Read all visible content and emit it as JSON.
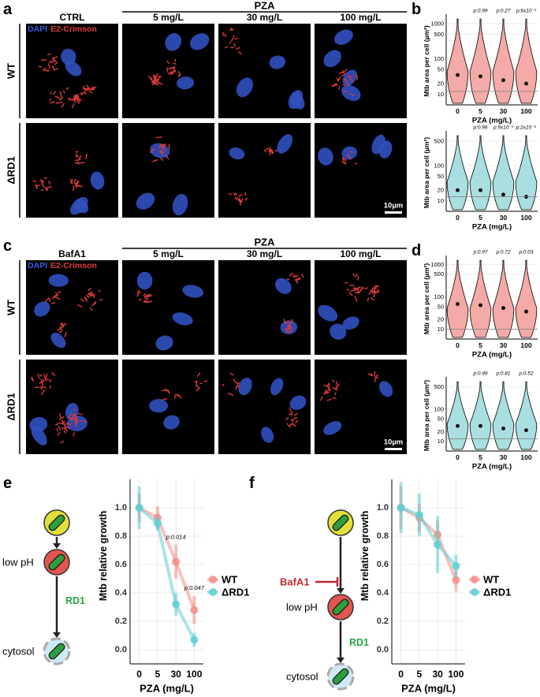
{
  "panel_labels": [
    "a",
    "b",
    "c",
    "d",
    "e",
    "f"
  ],
  "image_panels": [
    {
      "group_header": "PZA",
      "columns": [
        "CTRL",
        "5 mg/L",
        "30 mg/L",
        "100 mg/L"
      ],
      "rows": [
        "WT",
        "ΔRD1"
      ],
      "stain_labels": [
        "DAPI",
        "E2-Crimson"
      ],
      "scale_bar": "10µm"
    },
    {
      "group_header": "PZA",
      "columns": [
        "BafA1",
        "5 mg/L",
        "30 mg/L",
        "100 mg/L"
      ],
      "rows": [
        "WT",
        "ΔRD1"
      ],
      "stain_labels": [
        "DAPI",
        "E2-Crimson"
      ],
      "scale_bar": "10µm"
    }
  ],
  "diagrams": [
    {
      "steps": [
        "low pH",
        "cytosol"
      ],
      "factor": "RD1"
    },
    {
      "inhibitor": "BafA1",
      "steps": [
        "low pH",
        "cytosol"
      ],
      "factor": "RD1"
    }
  ],
  "chart_data": [
    {
      "type": "violin",
      "ylabel": "Mtb area per cell (µm²)",
      "xlabel": "PZA (mg/L)",
      "categories": [
        "0",
        "5",
        "30",
        "100"
      ],
      "values": [
        35,
        32,
        25,
        20
      ],
      "reference_line": 12,
      "color": "#f4aaa6",
      "annotations": [
        null,
        "p:0.99",
        "p:0.27",
        "p:6x10⁻³"
      ],
      "ylim": [
        5,
        1500
      ],
      "yticks": [
        10,
        20,
        50,
        100,
        500,
        1000
      ],
      "log_scale": true,
      "grid": true
    },
    {
      "type": "violin",
      "ylabel": "Mtb area per cell (µm²)",
      "xlabel": "PZA (mg/L)",
      "categories": [
        "0",
        "5",
        "30",
        "100"
      ],
      "values": [
        20,
        20,
        15,
        13
      ],
      "reference_line": 13,
      "color": "#a9dfe0",
      "annotations": [
        null,
        "p:0.96",
        "p:9x10⁻³",
        "p:2x10⁻⁴"
      ],
      "ylim": [
        5,
        800
      ],
      "yticks": [
        10,
        20,
        50,
        100,
        500
      ],
      "log_scale": true,
      "grid": true
    },
    {
      "type": "violin",
      "ylabel": "Mtb area per cell (µm²)",
      "xlabel": "PZA (mg/L)",
      "categories": [
        "0",
        "5",
        "30",
        "100"
      ],
      "values": [
        60,
        55,
        45,
        35
      ],
      "reference_line": 10,
      "color": "#f4aaa6",
      "annotations": [
        null,
        "p:0.97",
        "p:0.72",
        "p:0.03"
      ],
      "ylim": [
        5,
        1500
      ],
      "yticks": [
        10,
        20,
        50,
        100,
        500,
        1000
      ],
      "log_scale": true,
      "grid": true
    },
    {
      "type": "violin",
      "ylabel": "Mtb area per cell (µm²)",
      "xlabel": "PZA (mg/L)",
      "categories": [
        "0",
        "5",
        "30",
        "100"
      ],
      "values": [
        30,
        30,
        25,
        22
      ],
      "reference_line": 12,
      "color": "#a9dfe0",
      "annotations": [
        null,
        "p:0.99",
        "p:0.81",
        "p:0.52"
      ],
      "ylim": [
        5,
        800
      ],
      "yticks": [
        10,
        20,
        50,
        100,
        500
      ],
      "log_scale": true,
      "grid": true
    },
    {
      "type": "line",
      "ylabel": "Mtb relative growth",
      "xlabel": "PZA (mg/L)",
      "categories": [
        "0",
        "5",
        "30",
        "100"
      ],
      "series": [
        {
          "name": "WT",
          "color": "#f28e86",
          "values": [
            1,
            0.93,
            0.62,
            0.28
          ],
          "errors": [
            0.1,
            0.08,
            0.12,
            0.1
          ]
        },
        {
          "name": "ΔRD1",
          "color": "#5fcfd3",
          "values": [
            1,
            0.89,
            0.32,
            0.07
          ],
          "errors": [
            0.15,
            0.05,
            0.08,
            0.05
          ]
        }
      ],
      "annotations": [
        "p:0.014",
        "p:0.047"
      ],
      "ylim": [
        -0.1,
        1.2
      ],
      "yticks": [
        {
          "value": 0,
          "label": "0.0"
        },
        0.2,
        0.4,
        0.6,
        0.8,
        {
          "value": 1,
          "label": "1.0"
        }
      ],
      "grid": true,
      "legend": "right"
    },
    {
      "type": "line",
      "ylabel": "Mtb relative growth",
      "xlabel": "PZA (mg/L)",
      "categories": [
        "0",
        "5",
        "30",
        "100"
      ],
      "series": [
        {
          "name": "WT",
          "color": "#f28e86",
          "values": [
            1,
            0.93,
            0.81,
            0.49
          ],
          "errors": [
            0.15,
            0.1,
            0.1,
            0.08
          ]
        },
        {
          "name": "ΔRD1",
          "color": "#5fcfd3",
          "values": [
            1,
            0.95,
            0.74,
            0.59
          ],
          "errors": [
            0.18,
            0.15,
            0.2,
            0.08
          ]
        }
      ],
      "ylim": [
        -0.1,
        1.2
      ],
      "yticks": [
        {
          "value": 0,
          "label": "0.0"
        },
        0.2,
        0.4,
        0.6,
        0.8,
        {
          "value": 1,
          "label": "1.0"
        }
      ],
      "grid": true,
      "legend": "right"
    }
  ]
}
